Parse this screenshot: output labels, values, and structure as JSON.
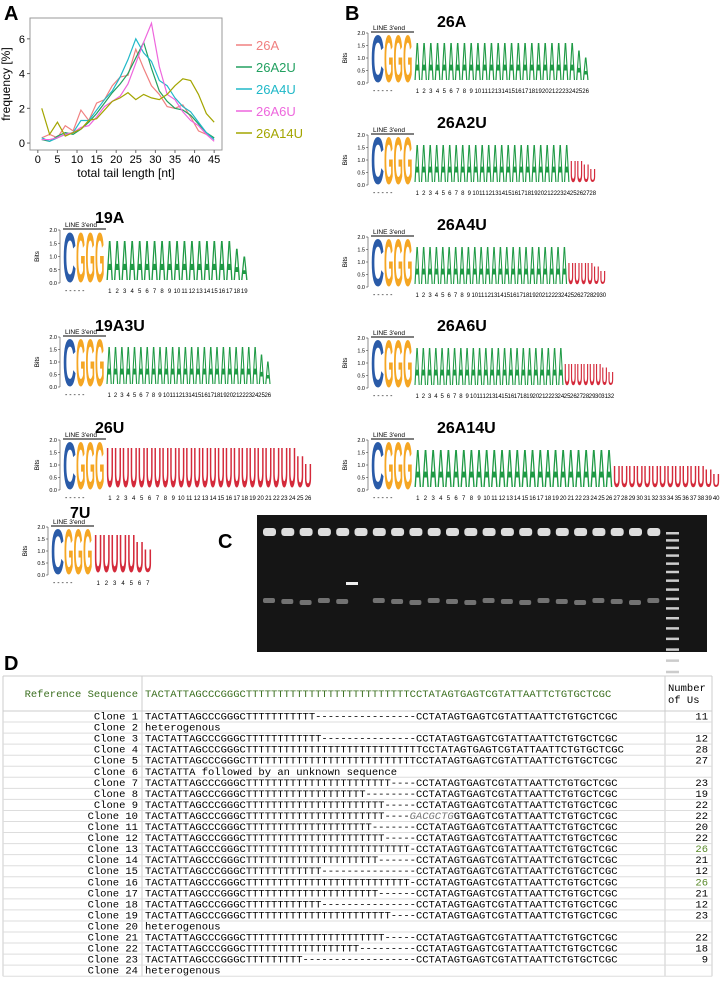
{
  "panel_labels": [
    "A",
    "B",
    "C",
    "D"
  ],
  "chart_data": {
    "type": "line",
    "ylabel": "frequency [%]",
    "xlabel": "total tail length [nt]",
    "x": [
      1,
      3,
      5,
      7,
      9,
      11,
      13,
      15,
      17,
      19,
      21,
      23,
      25,
      27,
      29,
      31,
      33,
      35,
      37,
      39,
      41,
      43,
      45
    ],
    "series": [
      {
        "name": "26A",
        "color": "#f08080",
        "values": [
          0.3,
          0.5,
          0.3,
          1.0,
          0.7,
          1.9,
          1.3,
          2.3,
          2.5,
          3.3,
          3.8,
          3.9,
          5.4,
          4.3,
          3.3,
          2.8,
          2.1,
          2.0,
          2.2,
          1.5,
          0.7,
          0.5,
          0.3
        ]
      },
      {
        "name": "26A2U",
        "color": "#22a060",
        "values": [
          0.2,
          0.1,
          0.4,
          0.6,
          0.5,
          0.8,
          1.2,
          1.7,
          2.3,
          2.9,
          3.4,
          4.0,
          4.9,
          5.8,
          4.3,
          3.0,
          2.4,
          2.0,
          1.9,
          1.6,
          1.1,
          0.6,
          0.3
        ]
      },
      {
        "name": "26A4U",
        "color": "#20b8c8",
        "values": [
          0.3,
          0.1,
          0.3,
          0.5,
          0.6,
          1.3,
          1.3,
          1.9,
          2.5,
          3.0,
          3.8,
          4.8,
          6.0,
          5.2,
          4.7,
          3.6,
          3.3,
          2.6,
          2.1,
          1.8,
          1.2,
          0.6,
          0.2
        ]
      },
      {
        "name": "26A6U",
        "color": "#ee66dd",
        "values": [
          0.2,
          0.2,
          0.3,
          0.5,
          0.6,
          0.9,
          1.0,
          1.5,
          2.1,
          2.4,
          2.7,
          3.4,
          4.6,
          5.8,
          6.9,
          4.4,
          2.8,
          2.5,
          1.8,
          1.3,
          1.0,
          0.5,
          0.1
        ]
      },
      {
        "name": "26A14U",
        "color": "#a3a500",
        "values": [
          2.0,
          0.5,
          1.2,
          0.4,
          0.6,
          0.8,
          1.3,
          1.4,
          1.9,
          2.4,
          2.6,
          2.9,
          2.5,
          2.8,
          2.6,
          2.5,
          2.8,
          3.3,
          3.7,
          3.6,
          2.8,
          1.7,
          1.2
        ]
      }
    ],
    "xlim": [
      -2,
      47
    ],
    "ylim": [
      -0.4,
      7.2
    ],
    "xticks": [
      0,
      5,
      10,
      15,
      20,
      25,
      30,
      35,
      40,
      45
    ],
    "yticks": [
      0,
      2,
      4,
      6
    ],
    "legend": "right"
  },
  "logos": {
    "line_label": "LINE 3'end",
    "bits_label": "Bits",
    "prefix": "CGGG",
    "prefix_ticks": "- - - - -",
    "ylim": [
      0,
      2
    ],
    "yticks": [
      {
        "value": 0,
        "label": "0.0"
      },
      {
        "value": 0.5,
        "label": "0.5"
      },
      {
        "value": 1,
        "label": "1.0"
      },
      {
        "value": 1.5,
        "label": "1.5"
      },
      {
        "value": 2,
        "label": "2.0"
      }
    ],
    "letter_colors": {
      "A": "#1f9a45",
      "U": "#d42a3b",
      "C": "#2a5ba8",
      "G": "#f5a623"
    },
    "items": [
      {
        "title": "26A",
        "consensus": "AAAAAAAAAAAAAAAAAAAAAAAAAA",
        "positions": [
          1,
          2,
          3,
          4,
          5,
          6,
          7,
          8,
          9,
          10,
          11,
          12,
          13,
          14,
          15,
          16,
          17,
          18,
          19,
          20,
          21,
          22,
          23,
          24,
          25,
          26
        ]
      },
      {
        "title": "26A2U",
        "consensus": "AAAAAAAAAAAAAAAAAAAAAAAAUUUU",
        "positions": [
          1,
          2,
          3,
          4,
          5,
          6,
          7,
          8,
          9,
          10,
          11,
          12,
          13,
          14,
          15,
          16,
          17,
          18,
          19,
          20,
          21,
          22,
          23,
          24,
          25,
          26,
          27,
          28
        ]
      },
      {
        "title": "26A4U",
        "consensus": "AAAAAAAAAAAAAAAAAAAAAAAAUUUUUU",
        "positions": [
          1,
          2,
          3,
          4,
          5,
          6,
          7,
          8,
          9,
          10,
          11,
          12,
          13,
          14,
          15,
          16,
          17,
          18,
          19,
          20,
          21,
          22,
          23,
          24,
          25,
          26,
          27,
          28,
          29,
          30
        ]
      },
      {
        "title": "26A6U",
        "consensus": "AAAAAAAAAAAAAAAAAAAAAAAAUUUUUUUU",
        "positions": [
          1,
          2,
          3,
          4,
          5,
          6,
          7,
          8,
          9,
          10,
          11,
          12,
          13,
          14,
          15,
          16,
          17,
          18,
          19,
          20,
          21,
          22,
          23,
          24,
          25,
          26,
          27,
          28,
          29,
          30,
          31,
          32
        ]
      },
      {
        "title": "26A14U",
        "consensus": "AAAAAAAAAAAAAAAAAAAAAAAAAAUUUUUUUUUUUUUU",
        "positions": [
          1,
          2,
          3,
          4,
          5,
          6,
          7,
          8,
          9,
          10,
          11,
          12,
          13,
          14,
          15,
          16,
          17,
          18,
          19,
          20,
          21,
          22,
          23,
          24,
          25,
          26,
          27,
          28,
          29,
          30,
          31,
          32,
          33,
          34,
          35,
          36,
          37,
          38,
          39,
          40
        ]
      },
      {
        "title": "19A",
        "consensus": "AAAAAAAAAAAAAAAAAAA",
        "positions": [
          1,
          2,
          3,
          4,
          5,
          6,
          7,
          8,
          9,
          10,
          11,
          12,
          13,
          14,
          15,
          16,
          17,
          18,
          19
        ]
      },
      {
        "title": "19A3U",
        "consensus": "AAAAAAAAAAAAAAAAAAAAAAAAAA",
        "positions": [
          1,
          2,
          3,
          4,
          5,
          6,
          7,
          8,
          9,
          10,
          11,
          12,
          13,
          14,
          15,
          16,
          17,
          18,
          19,
          20,
          21,
          22,
          23,
          24,
          25,
          26
        ]
      },
      {
        "title": "26U",
        "consensus": "UUUUUUUUUUUUUUUUUUUUUUUUUU",
        "positions": [
          1,
          2,
          3,
          4,
          5,
          6,
          7,
          8,
          9,
          10,
          11,
          12,
          13,
          14,
          15,
          16,
          17,
          18,
          19,
          20,
          21,
          22,
          23,
          24,
          25,
          26
        ]
      },
      {
        "title": "7U",
        "consensus": "UUUUUUU",
        "positions": [
          1,
          2,
          3,
          4,
          5,
          6,
          7
        ]
      }
    ]
  },
  "table": {
    "reference_label": "Reference Sequence",
    "reference": "TACTATTAGCCCGGGCTTTTTTTTTTTTTTTTTTTTTTTTTTCCTATAGTGAGTCGTATTAATTCTGTGCTCGC",
    "number_header": [
      "Number",
      "of Us"
    ],
    "rows": [
      {
        "clone": "Clone 1",
        "sequence": "TACTATTAGCCCGGGCTTTTTTTTTTT----------------CCTATAGTGAGTCGTATTAATTCTGTGCTCGC",
        "us": 11
      },
      {
        "clone": "Clone 2",
        "sequence": "heterogenous"
      },
      {
        "clone": "Clone 3",
        "sequence": "TACTATTAGCCCGGGCTTTTTTTTTTTT---------------CCTATAGTGAGTCGTATTAATTCTGTGCTCGC",
        "us": 12
      },
      {
        "clone": "Clone 4",
        "sequence": "TACTATTAGCCCGGGCTTTTTTTTTTTTTTTTTTTTTTTTTTTTCCTATAGTGAGTCGTATTAATTCTGTGCTCGC",
        "us": 28
      },
      {
        "clone": "Clone 5",
        "sequence": "TACTATTAGCCCGGGCTTTTTTTTTTTTTTTTTTTTTTTTTTTCCTATAGTGAGTCGTATTAATTCTGTGCTCGC",
        "us": 27
      },
      {
        "clone": "Clone 6",
        "sequence": "TACTATTA followed by an unknown sequence"
      },
      {
        "clone": "Clone 7",
        "sequence": "TACTATTAGCCCGGGCTTTTTTTTTTTTTTTTTTTTTTT----CCTATAGTGAGTCGTATTAATTCTGTGCTCGC",
        "us": 23
      },
      {
        "clone": "Clone 8",
        "sequence": "TACTATTAGCCCGGGCTTTTTTTTTTTTTTTTTTT--------CCTATAGTGAGTCGTATTAATTCTGTGCTCGC",
        "us": 19
      },
      {
        "clone": "Clone 9",
        "sequence": "TACTATTAGCCCGGGCTTTTTTTTTTTTTTTTTTTTTT-----CCTATAGTGAGTCGTATTAATTCTGTGCTCGC",
        "us": 22
      },
      {
        "clone": "Clone 10",
        "sequence": "TACTATTAGCCCGGGCTTTTTTTTTTTTTTTTTTTTTT----",
        "insertion": "GACGCTG",
        "sequence_tail": "GTGAGTCGTATTAATTCTGTGCTCGC",
        "us": 22
      },
      {
        "clone": "Clone 11",
        "sequence": "TACTATTAGCCCGGGCTTTTTTTTTTTTTTTTTTTT-------CCTATAGTGAGTCGTATTAATTCTGTGCTCGC",
        "us": 20
      },
      {
        "clone": "Clone 12",
        "sequence": "TACTATTAGCCCGGGCTTTTTTTTTTTTTTTTTTTTTT-----CCTATAGTGAGTCGTATTAATTCTGTGCTCGC",
        "us": 22
      },
      {
        "clone": "Clone 13",
        "sequence": "TACTATTAGCCCGGGCTTTTTTTTTTTTTTTTTTTTTTTTTT-CCTATAGTGAGTCGTATTAATTCTGTGCTCGC",
        "us": 26,
        "us_color": "#5a8a2a"
      },
      {
        "clone": "Clone 14",
        "sequence": "TACTATTAGCCCGGGCTTTTTTTTTTTTTTTTTTTTT------CCTATAGTGAGTCGTATTAATTCTGTGCTCGC",
        "us": 21
      },
      {
        "clone": "Clone 15",
        "sequence": "TACTATTAGCCCGGGCTTTTTTTTTTTT---------------CCTATAGTGAGTCGTATTAATTCTGTGCTCGC",
        "us": 12
      },
      {
        "clone": "Clone 16",
        "sequence": "TACTATTAGCCCGGGCTTTTTTTTTTTTTTTTTTTTTTTTTT-CCTATAGTGAGTCGTATTAATTCTGTGCTCGC",
        "us": 26,
        "us_color": "#5a8a2a"
      },
      {
        "clone": "Clone 17",
        "sequence": "TACTATTAGCCCGGGCTTTTTTTTTTTTTTTTTTTTT------CCTATAGTGAGTCGTATTAATTCTGTGCTCGC",
        "us": 21
      },
      {
        "clone": "Clone 18",
        "sequence": "TACTATTAGCCCGGGCTTTTTTTTTTTT---------------CCTATAGTGAGTCGTATTAATTCTGTGCTCGC",
        "us": 12
      },
      {
        "clone": "Clone 19",
        "sequence": "TACTATTAGCCCGGGCTTTTTTTTTTTTTTTTTTTTTTT----CCTATAGTGAGTCGTATTAATTCTGTGCTCGC",
        "us": 23
      },
      {
        "clone": "Clone 20",
        "sequence": "heterogenous"
      },
      {
        "clone": "Clone 21",
        "sequence": "TACTATTAGCCCGGGCTTTTTTTTTTTTTTTTTTTTTT-----CCTATAGTGAGTCGTATTAATTCTGTGCTCGC",
        "us": 22
      },
      {
        "clone": "Clone 22",
        "sequence": "TACTATTAGCCCGGGCTTTTTTTTTTTTTTTTTT---------CCTATAGTGAGTCGTATTAATTCTGTGCTCGC",
        "us": 18
      },
      {
        "clone": "Clone 23",
        "sequence": "TACTATTAGCCCGGGCTTTTTTTTT------------------CCTATAGTGAGTCGTATTAATTCTGTGCTCGC",
        "us": 9
      },
      {
        "clone": "Clone 24",
        "sequence": "heterogenous"
      }
    ]
  }
}
